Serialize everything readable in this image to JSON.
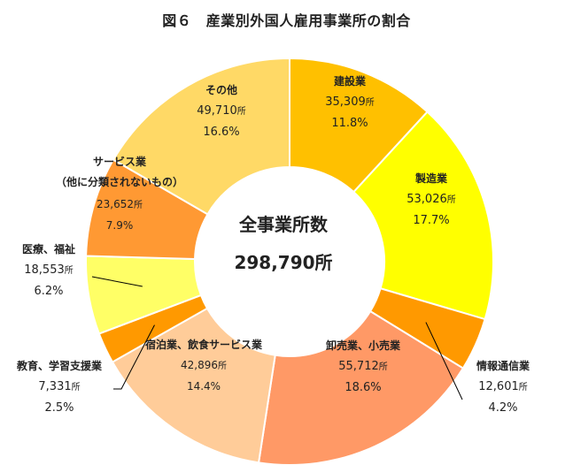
{
  "title": "図６　産業別外国人雇用事業所の割合",
  "center": {
    "label": "全事業所数",
    "value": "298,790所"
  },
  "colors": {
    "construction": "#FFC000",
    "manufacturing": "#FFFF00",
    "info": "#FF9900",
    "wholesale": "#FF9966",
    "hotel": "#FFCC99",
    "education": "#FF9900",
    "medical": "#FFFF66",
    "services": "#FF9933",
    "other": "#FFD966",
    "border": "#FFFFFF",
    "leader": "#000000"
  },
  "chart_data": {
    "type": "pie",
    "donut": true,
    "title": "図６　産業別外国人雇用事業所の割合",
    "unit": "所",
    "total": 298790,
    "slices": [
      {
        "key": "construction",
        "name": "建設業",
        "count": 35309,
        "count_text": "35,309",
        "percent": 11.8,
        "percent_text": "11.8%"
      },
      {
        "key": "manufacturing",
        "name": "製造業",
        "count": 53026,
        "count_text": "53,026",
        "percent": 17.7,
        "percent_text": "17.7%"
      },
      {
        "key": "info",
        "name": "情報通信業",
        "count": 12601,
        "count_text": "12,601",
        "percent": 4.2,
        "percent_text": "4.2%"
      },
      {
        "key": "wholesale",
        "name": "卸売業、小売業",
        "count": 55712,
        "count_text": "55,712",
        "percent": 18.6,
        "percent_text": "18.6%"
      },
      {
        "key": "hotel",
        "name": "宿泊業、飲食サービス業",
        "count": 42896,
        "count_text": "42,896",
        "percent": 14.4,
        "percent_text": "14.4%"
      },
      {
        "key": "education",
        "name": "教育、学習支援業",
        "count": 7331,
        "count_text": "7,331",
        "percent": 2.5,
        "percent_text": "2.5%"
      },
      {
        "key": "medical",
        "name": "医療、福祉",
        "count": 18553,
        "count_text": "18,553",
        "percent": 6.2,
        "percent_text": "6.2%"
      },
      {
        "key": "services",
        "name": "サービス業\n（他に分類されないもの）",
        "count": 23652,
        "count_text": "23,652",
        "percent": 7.9,
        "percent_text": "7.9%"
      },
      {
        "key": "other",
        "name": "その他",
        "count": 49710,
        "count_text": "49,710",
        "percent": 16.6,
        "percent_text": "16.6%"
      }
    ]
  }
}
